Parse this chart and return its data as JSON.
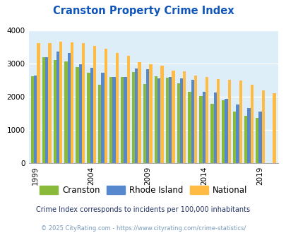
{
  "title": "Cranston Property Crime Index",
  "years": [
    1999,
    2000,
    2001,
    2002,
    2003,
    2004,
    2005,
    2006,
    2007,
    2008,
    2009,
    2010,
    2011,
    2012,
    2013,
    2014,
    2015,
    2016,
    2017,
    2018,
    2019,
    2020
  ],
  "cranston": [
    2620,
    3190,
    3100,
    3060,
    2900,
    2720,
    2350,
    2590,
    2600,
    2740,
    2380,
    2620,
    2580,
    2400,
    2150,
    2010,
    1790,
    1890,
    1560,
    1430,
    1370,
    0
  ],
  "rhode_island": [
    2640,
    3200,
    3370,
    3310,
    2970,
    2870,
    2720,
    2590,
    2600,
    2850,
    2830,
    2560,
    2590,
    2560,
    2500,
    2150,
    2120,
    1940,
    1760,
    1660,
    1550,
    0
  ],
  "national": [
    3610,
    3620,
    3660,
    3630,
    3620,
    3530,
    3440,
    3320,
    3230,
    3050,
    2970,
    2930,
    2780,
    2770,
    2640,
    2590,
    2530,
    2500,
    2490,
    2360,
    2180,
    2100
  ],
  "cranston_color": "#8aba3a",
  "rhode_island_color": "#5588cc",
  "national_color": "#ffbb44",
  "bg_color": "#deeef8",
  "ylim": [
    0,
    4000
  ],
  "yticks": [
    0,
    1000,
    2000,
    3000,
    4000
  ],
  "xtick_years": [
    1999,
    2004,
    2009,
    2014,
    2019
  ],
  "legend_labels": [
    "Cranston",
    "Rhode Island",
    "National"
  ],
  "subtitle": "Crime Index corresponds to incidents per 100,000 inhabitants",
  "footer": "© 2025 CityRating.com - https://www.cityrating.com/crime-statistics/",
  "title_color": "#1155bb",
  "subtitle_color": "#223366",
  "footer_color": "#7799bb"
}
